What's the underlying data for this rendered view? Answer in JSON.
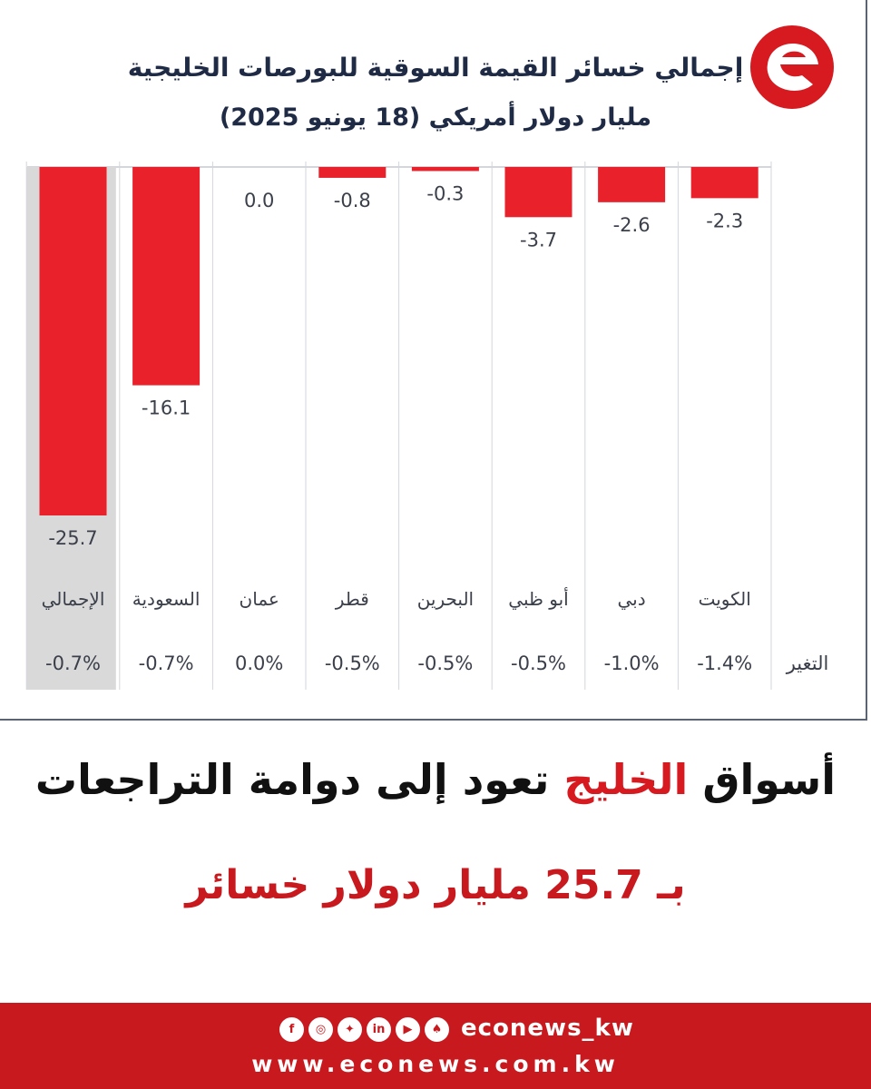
{
  "chart_data": {
    "type": "bar",
    "title": "إجمالي خسائر القيمة السوقية للبورصات الخليجية",
    "subtitle": "مليار دولار أمريكي (18 يونيو 2025)",
    "categories": [
      "الكويت",
      "دبي",
      "أبو ظبي",
      "البحرين",
      "قطر",
      "عمان",
      "السعودية",
      "الإجمالي"
    ],
    "values": [
      -2.3,
      -2.6,
      -3.7,
      -0.3,
      -0.8,
      0.0,
      -16.1,
      -25.7
    ],
    "value_labels": [
      "-2.3",
      "-2.6",
      "-3.7",
      "-0.3",
      "-0.8",
      "0.0",
      "-16.1",
      "-25.7"
    ],
    "change_label": "التغير",
    "changes": [
      "-1.4%",
      "-1.0%",
      "-0.5%",
      "-0.5%",
      "-0.5%",
      "0.0%",
      "-0.7%",
      "-0.7%"
    ],
    "ylim": [
      -25.7,
      0
    ],
    "bar_color": "#e8212b",
    "highlight_category": "الإجمالي",
    "highlight_color": "#d9d9d9",
    "grid": true,
    "legend": "none"
  },
  "headline": {
    "part1": "أسواق",
    "accent": "الخليج",
    "part2": "تعود إلى دوامة التراجعات",
    "line2": "بـ 25.7 مليار دولار خسائر"
  },
  "footer": {
    "handle": "econews_kw",
    "url": "www.econews.com.kw",
    "icons": [
      "facebook-icon",
      "instagram-icon",
      "twitter-icon",
      "linkedin-icon",
      "youtube-icon",
      "snapchat-icon"
    ]
  },
  "colors": {
    "brand_red": "#c8191f",
    "title_navy": "#1f2a44"
  }
}
